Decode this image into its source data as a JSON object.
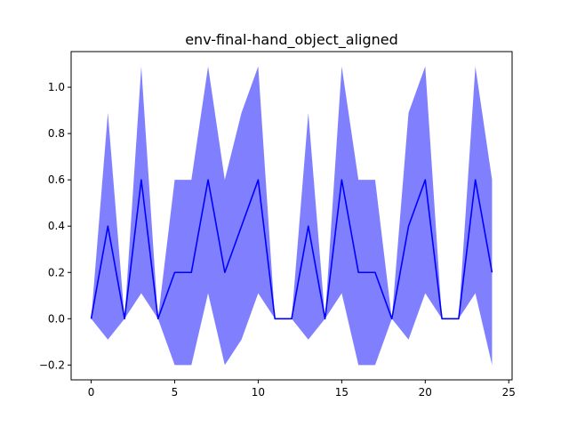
{
  "chart_data": {
    "type": "line",
    "title": "env-final-hand_object_aligned",
    "xlabel": "",
    "ylabel": "",
    "xlim": [
      -1.2,
      25.2
    ],
    "ylim": [
      -0.264,
      1.154
    ],
    "grid": false,
    "x_ticks": [
      0,
      5,
      10,
      15,
      20,
      25
    ],
    "x_tick_labels": [
      "0",
      "5",
      "10",
      "15",
      "20",
      "25"
    ],
    "y_ticks": [
      -0.2,
      0.0,
      0.2,
      0.4,
      0.6,
      0.8,
      1.0
    ],
    "y_tick_labels": [
      "−0.2",
      "0.0",
      "0.2",
      "0.4",
      "0.6",
      "0.8",
      "1.0"
    ],
    "series": [
      {
        "color": "#0000ff",
        "x": [
          0,
          1,
          2,
          3,
          4,
          5,
          6,
          7,
          8,
          9,
          10,
          11,
          12,
          13,
          14,
          15,
          16,
          17,
          18,
          19,
          20,
          21,
          22,
          23,
          24
        ],
        "mean": [
          0.0,
          0.4,
          0.0,
          0.6,
          0.0,
          0.2,
          0.2,
          0.6,
          0.2,
          0.4,
          0.6,
          0.0,
          0.0,
          0.4,
          0.0,
          0.6,
          0.2,
          0.2,
          0.0,
          0.4,
          0.6,
          0.0,
          0.0,
          0.6,
          0.2
        ],
        "upper": [
          0.0,
          0.89,
          0.0,
          1.09,
          0.0,
          0.6,
          0.6,
          1.09,
          0.6,
          0.89,
          1.09,
          0.0,
          0.0,
          0.89,
          0.0,
          1.09,
          0.6,
          0.6,
          0.0,
          0.89,
          1.09,
          0.0,
          0.0,
          1.09,
          0.6
        ],
        "lower": [
          0.0,
          -0.09,
          0.0,
          0.11,
          0.0,
          -0.2,
          -0.2,
          0.11,
          -0.2,
          -0.09,
          0.11,
          0.0,
          0.0,
          -0.09,
          0.0,
          0.11,
          -0.2,
          -0.2,
          0.0,
          -0.09,
          0.11,
          0.0,
          0.0,
          0.11,
          -0.2
        ],
        "band_color": "#8080ff"
      }
    ]
  }
}
